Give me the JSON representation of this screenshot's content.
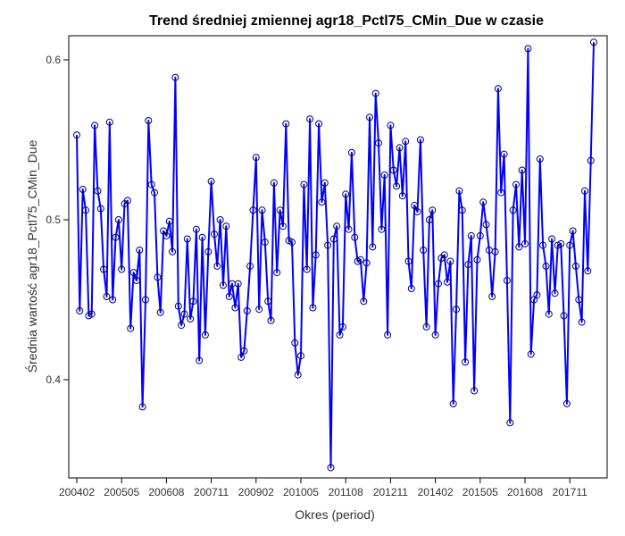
{
  "chart_data": {
    "type": "line",
    "title": "Trend średniej zmiennej agr18_Pctl75_CMin_Due w czasie",
    "xlabel": "Okres (period)",
    "ylabel": "Średnia wartość agr18_Pctl75_CMin_Due",
    "x_tick_labels": [
      "200402",
      "200505",
      "200608",
      "200711",
      "200902",
      "201005",
      "201108",
      "201211",
      "201402",
      "201505",
      "201608",
      "201711"
    ],
    "y_ticks": [
      0.4,
      0.5,
      0.6
    ],
    "y_tick_labels": [
      "0.4",
      "0.5",
      "0.6"
    ],
    "ylim": [
      0.34,
      0.62
    ],
    "grid": false,
    "colors": {
      "line": "#0000ff",
      "marker_edge": "#000080",
      "axes": "#000000"
    },
    "series": [
      {
        "values": [
          0.553,
          0.443,
          0.519,
          0.506,
          0.44,
          0.441,
          0.559,
          0.518,
          0.507,
          0.469,
          0.452,
          0.561,
          0.45,
          0.489,
          0.5,
          0.469,
          0.51,
          0.512,
          0.432,
          0.467,
          0.462,
          0.481,
          0.383,
          0.45,
          0.562,
          0.522,
          0.517,
          0.464,
          0.442,
          0.493,
          0.49,
          0.499,
          0.48,
          0.589,
          0.446,
          0.434,
          0.441,
          0.488,
          0.438,
          0.449,
          0.494,
          0.412,
          0.489,
          0.428,
          0.48,
          0.524,
          0.491,
          0.471,
          0.5,
          0.459,
          0.496,
          0.452,
          0.46,
          0.445,
          0.46,
          0.414,
          0.418,
          0.443,
          0.471,
          0.506,
          0.539,
          0.444,
          0.506,
          0.486,
          0.449,
          0.437,
          0.523,
          0.467,
          0.506,
          0.496,
          0.56,
          0.487,
          0.486,
          0.423,
          0.403,
          0.415,
          0.522,
          0.469,
          0.563,
          0.445,
          0.478,
          0.56,
          0.511,
          0.523,
          0.484,
          0.345,
          0.488,
          0.496,
          0.428,
          0.433,
          0.516,
          0.494,
          0.542,
          0.489,
          0.474,
          0.475,
          0.449,
          0.473,
          0.564,
          0.483,
          0.579,
          0.548,
          0.494,
          0.528,
          0.428,
          0.559,
          0.531,
          0.521,
          0.545,
          0.515,
          0.549,
          0.474,
          0.457,
          0.509,
          0.505,
          0.55,
          0.481,
          0.433,
          0.5,
          0.506,
          0.428,
          0.46,
          0.476,
          0.478,
          0.461,
          0.474,
          0.385,
          0.444,
          0.518,
          0.506,
          0.411,
          0.472,
          0.49,
          0.393,
          0.475,
          0.49,
          0.511,
          0.497,
          0.481,
          0.452,
          0.48,
          0.582,
          0.517,
          0.541,
          0.462,
          0.373,
          0.506,
          0.522,
          0.483,
          0.531,
          0.485,
          0.607,
          0.416,
          0.45,
          0.453,
          0.538,
          0.484,
          0.471,
          0.441,
          0.488,
          0.454,
          0.484,
          0.485,
          0.44,
          0.385,
          0.484,
          0.493,
          0.471,
          0.45,
          0.436,
          0.518,
          0.468,
          0.537,
          0.611
        ]
      }
    ]
  }
}
